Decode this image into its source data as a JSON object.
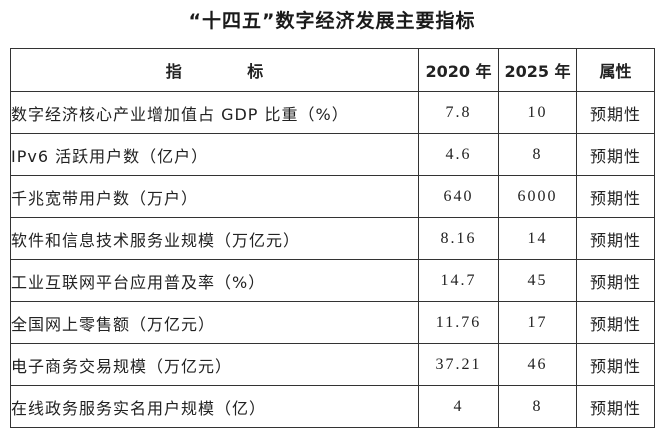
{
  "document": {
    "title": "“十四五”数字经济发展主要指标"
  },
  "table": {
    "headers": {
      "indicator": "指 标",
      "year_2020": "2020 年",
      "year_2025": "2025 年",
      "attribute": "属性"
    },
    "rows": [
      {
        "indicator": "数字经济核心产业增加值占 GDP 比重（%）",
        "y2020": "7.8",
        "y2025": "10",
        "attribute": "预期性"
      },
      {
        "indicator": "IPv6 活跃用户数（亿户）",
        "y2020": "4.6",
        "y2025": "8",
        "attribute": "预期性"
      },
      {
        "indicator": "千兆宽带用户数（万户）",
        "y2020": "640",
        "y2025": "6000",
        "attribute": "预期性"
      },
      {
        "indicator": "软件和信息技术服务业规模（万亿元）",
        "y2020": "8.16",
        "y2025": "14",
        "attribute": "预期性"
      },
      {
        "indicator": "工业互联网平台应用普及率（%）",
        "y2020": "14.7",
        "y2025": "45",
        "attribute": "预期性"
      },
      {
        "indicator": "全国网上零售额（万亿元）",
        "y2020": "11.76",
        "y2025": "17",
        "attribute": "预期性"
      },
      {
        "indicator": "电子商务交易规模（万亿元）",
        "y2020": "37.21",
        "y2025": "46",
        "attribute": "预期性"
      },
      {
        "indicator": "在线政务服务实名用户规模（亿）",
        "y2020": "4",
        "y2025": "8",
        "attribute": "预期性"
      }
    ]
  }
}
